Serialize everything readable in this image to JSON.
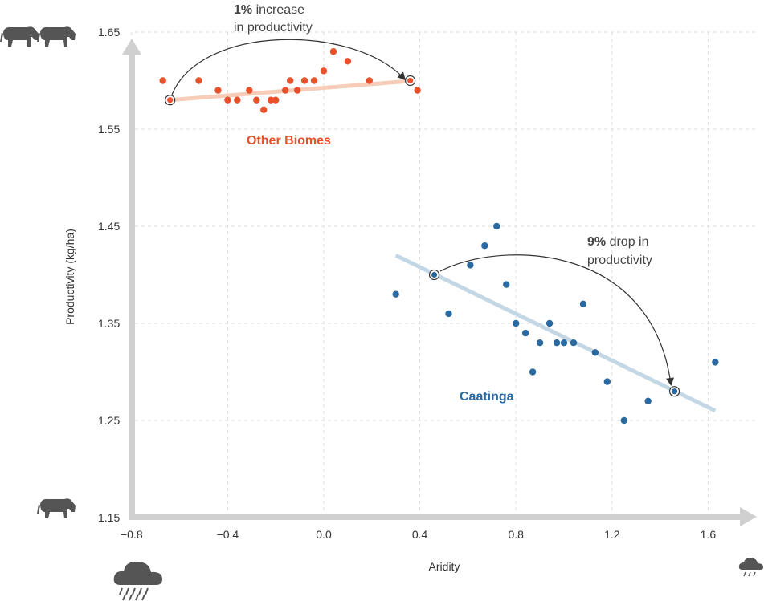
{
  "colors": {
    "other_biomes": "#e8512b",
    "other_biomes_trend": "#f7cdb9",
    "caatinga": "#2b6aa0",
    "caatinga_trend": "#c3d7e5",
    "axis_arrow": "#d0d0d0",
    "grid": "#dddddd",
    "icon": "#555555"
  },
  "icons": {
    "top_left": "two-cattle-icon",
    "bottom_left": "cattle-icon",
    "bottom_left_under_axis": "heavy-rain-cloud-icon",
    "bottom_right": "light-rain-cloud-icon"
  },
  "annotations": {
    "increase": {
      "value": "1%",
      "text_line1": " increase",
      "text_line2": "in productivity"
    },
    "drop": {
      "value": "9%",
      "text_line1": " drop in",
      "text_line2": "productivity"
    }
  },
  "chart_data": {
    "type": "scatter",
    "xlabel": "Aridity",
    "ylabel": "Productivity (kg/ha)",
    "xlim": [
      -0.9,
      1.8
    ],
    "ylim": [
      1.15,
      1.67
    ],
    "xticks": [
      -0.8,
      -0.4,
      0.0,
      0.4,
      0.8,
      1.2,
      1.6
    ],
    "xtick_labels": [
      "−0.8",
      "−0.4",
      "0.0",
      "0.4",
      "0.8",
      "1.2",
      "1.6"
    ],
    "yticks": [
      1.15,
      1.25,
      1.35,
      1.45,
      1.55,
      1.65
    ],
    "ytick_labels": [
      "1.15",
      "1.25",
      "1.35",
      "1.45",
      "1.55",
      "1.65"
    ],
    "grid": true,
    "series": [
      {
        "name": "Other Biomes",
        "points": [
          [
            -0.67,
            1.6
          ],
          [
            -0.52,
            1.6
          ],
          [
            -0.44,
            1.59
          ],
          [
            -0.4,
            1.58
          ],
          [
            -0.36,
            1.58
          ],
          [
            -0.31,
            1.59
          ],
          [
            -0.28,
            1.58
          ],
          [
            -0.25,
            1.57
          ],
          [
            -0.22,
            1.58
          ],
          [
            -0.2,
            1.58
          ],
          [
            -0.16,
            1.59
          ],
          [
            -0.14,
            1.6
          ],
          [
            -0.11,
            1.59
          ],
          [
            -0.08,
            1.6
          ],
          [
            -0.04,
            1.6
          ],
          [
            0.0,
            1.61
          ],
          [
            0.04,
            1.63
          ],
          [
            0.1,
            1.62
          ],
          [
            0.19,
            1.6
          ],
          [
            0.39,
            1.59
          ]
        ],
        "trend": [
          [
            -0.64,
            1.58
          ],
          [
            0.38,
            1.6
          ]
        ],
        "highlight": [
          [
            -0.64,
            1.58
          ],
          [
            0.36,
            1.6
          ]
        ]
      },
      {
        "name": "Caatinga",
        "points": [
          [
            0.3,
            1.38
          ],
          [
            0.52,
            1.36
          ],
          [
            0.61,
            1.41
          ],
          [
            0.67,
            1.43
          ],
          [
            0.72,
            1.45
          ],
          [
            0.76,
            1.39
          ],
          [
            0.8,
            1.35
          ],
          [
            0.84,
            1.34
          ],
          [
            0.87,
            1.3
          ],
          [
            0.9,
            1.33
          ],
          [
            0.94,
            1.35
          ],
          [
            0.97,
            1.33
          ],
          [
            1.0,
            1.33
          ],
          [
            1.04,
            1.33
          ],
          [
            1.08,
            1.37
          ],
          [
            1.13,
            1.32
          ],
          [
            1.18,
            1.29
          ],
          [
            1.25,
            1.25
          ],
          [
            1.35,
            1.27
          ],
          [
            1.63,
            1.31
          ]
        ],
        "trend": [
          [
            0.3,
            1.42
          ],
          [
            1.63,
            1.26
          ]
        ],
        "highlight": [
          [
            0.46,
            1.4
          ],
          [
            1.46,
            1.28
          ]
        ]
      }
    ]
  }
}
